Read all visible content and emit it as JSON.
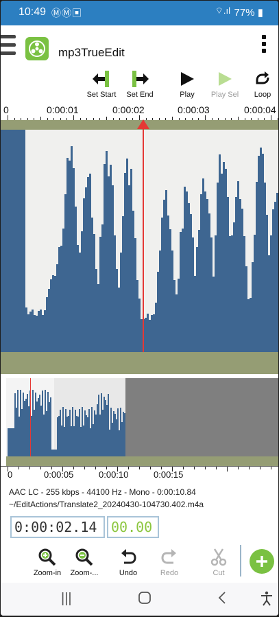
{
  "status_bar": {
    "time": "10:49",
    "notifications": "ⓂⓂ▣",
    "signal": "⌔.ıl",
    "battery": "77%"
  },
  "app_bar": {
    "title": "mp3TrueEdit"
  },
  "top_toolbar": {
    "set_start": "Set Start",
    "set_end": "Set End",
    "play": "Play",
    "play_sel": "Play Sel",
    "loop": "Loop"
  },
  "ruler_top": {
    "labels": [
      "0",
      "0:00:01",
      "0:00:02",
      "0:00:03",
      "0:00:04"
    ]
  },
  "ruler_bottom": {
    "labels": [
      "0",
      "0:00:05",
      "0:00:10",
      "0:00:15"
    ]
  },
  "file_info": {
    "format": "AAC LC - 255 kbps - 44100 Hz - Mono - 0:00:10.84",
    "path": "~/EditActions/Translate2_20240430-104730.402.m4a"
  },
  "position": {
    "time": "0:00:02.14",
    "selection": "00.00"
  },
  "bottom_toolbar": {
    "zoom_in": "Zoom-in",
    "zoom_out": "Zoom-...",
    "undo": "Undo",
    "redo": "Redo",
    "cut": "Cut"
  },
  "colors": {
    "status_bar": "#2c7fc1",
    "waveform": "#3e6691",
    "band": "#959d74",
    "cursor": "#e53935",
    "accent": "#7ac142"
  },
  "icons": {
    "menu": "hamburger-icon",
    "logo": "reel-logo-icon",
    "overflow": "vertical-dots-icon",
    "add": "plus-icon"
  }
}
